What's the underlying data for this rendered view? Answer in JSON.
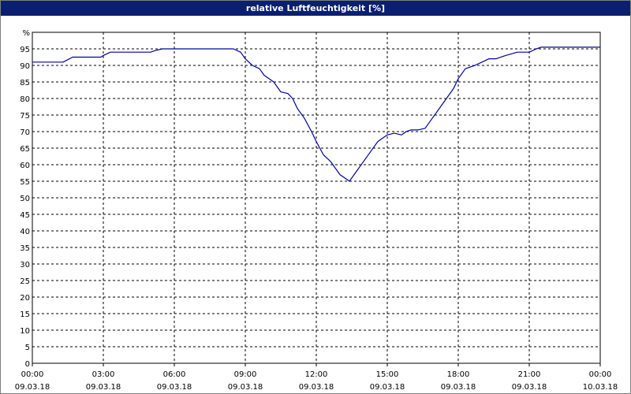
{
  "window": {
    "title": "relative Luftfeuchtigkeit [%]"
  },
  "colors": {
    "title_bar": "#0a1f6e",
    "line": "#0000a0",
    "grid": "#000000",
    "background": "#ffffff"
  },
  "chart_data": {
    "type": "line",
    "title": "relative Luftfeuchtigkeit [%]",
    "ylabel": "%",
    "xlabel": "",
    "ylim": [
      0,
      100
    ],
    "yticks": [
      0,
      5,
      10,
      15,
      20,
      25,
      30,
      35,
      40,
      45,
      50,
      55,
      60,
      65,
      70,
      75,
      80,
      85,
      90,
      95
    ],
    "xlim_hours": [
      0,
      24
    ],
    "xticks": [
      {
        "time": "00:00",
        "date": "09.03.18"
      },
      {
        "time": "03:00",
        "date": "09.03.18"
      },
      {
        "time": "06:00",
        "date": "09.03.18"
      },
      {
        "time": "09:00",
        "date": "09.03.18"
      },
      {
        "time": "12:00",
        "date": "09.03.18"
      },
      {
        "time": "15:00",
        "date": "09.03.18"
      },
      {
        "time": "18:00",
        "date": "09.03.18"
      },
      {
        "time": "21:00",
        "date": "09.03.18"
      },
      {
        "time": "00:00",
        "date": "10.03.18"
      }
    ],
    "grid": true,
    "series": [
      {
        "x_hours": [
          0,
          1.3,
          1.7,
          2.0,
          2.9,
          3.0,
          3.3,
          3.6,
          4.5,
          5.0,
          5.2,
          5.5,
          6.0,
          7.0,
          8.0,
          8.5,
          8.8,
          9.0,
          9.3,
          9.6,
          9.8,
          10.0,
          10.2,
          10.5,
          10.8,
          11.0,
          11.2,
          11.5,
          11.8,
          12.0,
          12.3,
          12.6,
          12.9,
          13.0,
          13.2,
          13.4,
          13.7,
          14.0,
          14.3,
          14.6,
          14.9,
          15.0,
          15.3,
          15.6,
          15.8,
          16.0,
          16.3,
          16.6,
          16.9,
          17.2,
          17.5,
          17.8,
          18.0,
          18.3,
          18.7,
          19.0,
          19.3,
          19.6,
          20.0,
          20.5,
          20.8,
          21.0,
          21.3,
          21.5,
          22.0,
          23.0,
          24.0
        ],
        "values": [
          91,
          91,
          92.5,
          92.5,
          92.5,
          93,
          94,
          94,
          94,
          94,
          94.5,
          95,
          95,
          95,
          95,
          95,
          94,
          92,
          90,
          89,
          87,
          86,
          85,
          82,
          81.5,
          80,
          77,
          74,
          70,
          67,
          63,
          61,
          58,
          57,
          56,
          55,
          58,
          61,
          64,
          67,
          68.5,
          69,
          69.5,
          69,
          70,
          70.5,
          70.5,
          71,
          74,
          77,
          80,
          83,
          86,
          89,
          90,
          91,
          92,
          92,
          93,
          94,
          94,
          94,
          95,
          95.5,
          95.5,
          95.5,
          95.5
        ]
      }
    ]
  }
}
